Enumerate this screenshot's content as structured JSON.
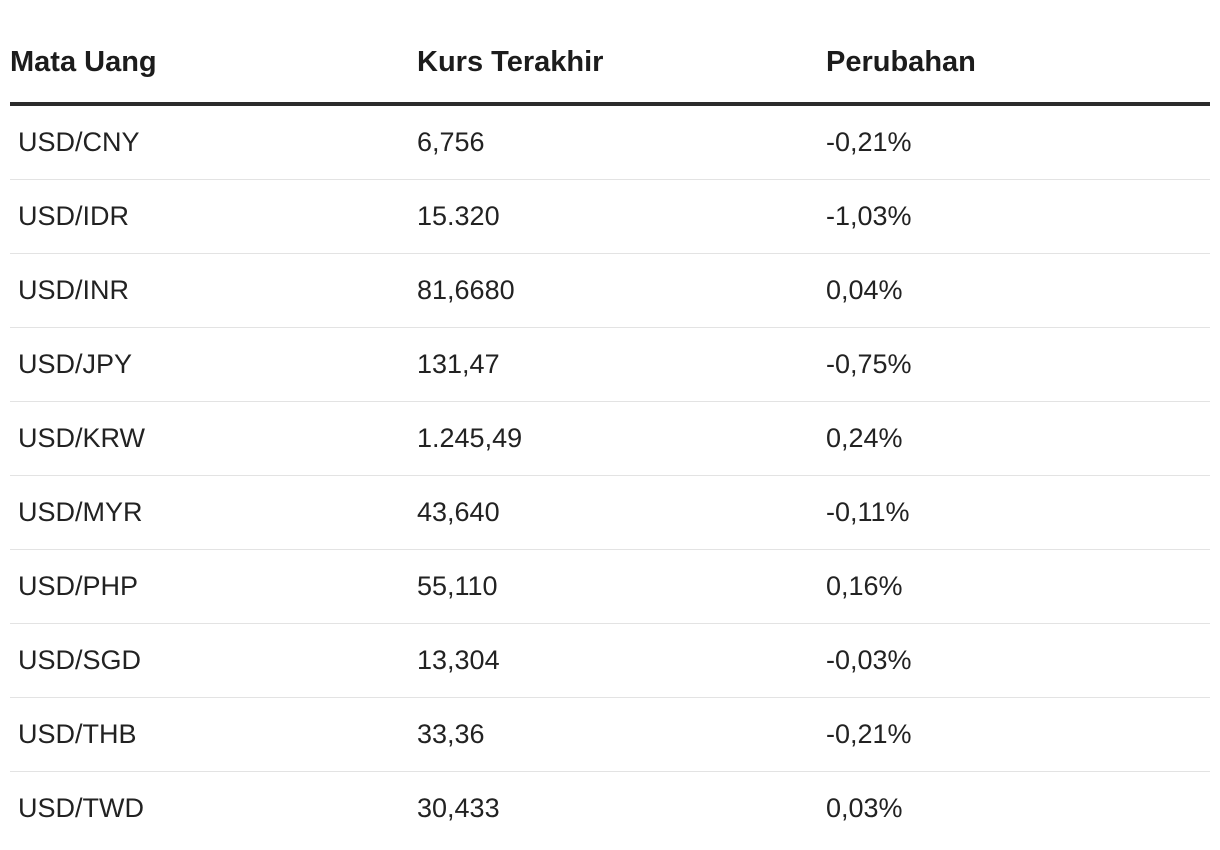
{
  "table": {
    "headers": [
      "Mata Uang",
      "Kurs Terakhir",
      "Perubahan"
    ],
    "rows": [
      {
        "pair": "USD/CNY",
        "rate": "6,756",
        "change": "-0,21%"
      },
      {
        "pair": "USD/IDR",
        "rate": "15.320",
        "change": "-1,03%"
      },
      {
        "pair": "USD/INR",
        "rate": "81,6680",
        "change": "0,04%"
      },
      {
        "pair": "USD/JPY",
        "rate": "131,47",
        "change": "-0,75%"
      },
      {
        "pair": "USD/KRW",
        "rate": "1.245,49",
        "change": "0,24%"
      },
      {
        "pair": "USD/MYR",
        "rate": "43,640",
        "change": "-0,11%"
      },
      {
        "pair": "USD/PHP",
        "rate": "55,110",
        "change": "0,16%"
      },
      {
        "pair": "USD/SGD",
        "rate": "13,304",
        "change": "-0,03%"
      },
      {
        "pair": "USD/THB",
        "rate": "33,36",
        "change": "-0,21%"
      },
      {
        "pair": "USD/TWD",
        "rate": "30,433",
        "change": "0,03%"
      }
    ]
  }
}
